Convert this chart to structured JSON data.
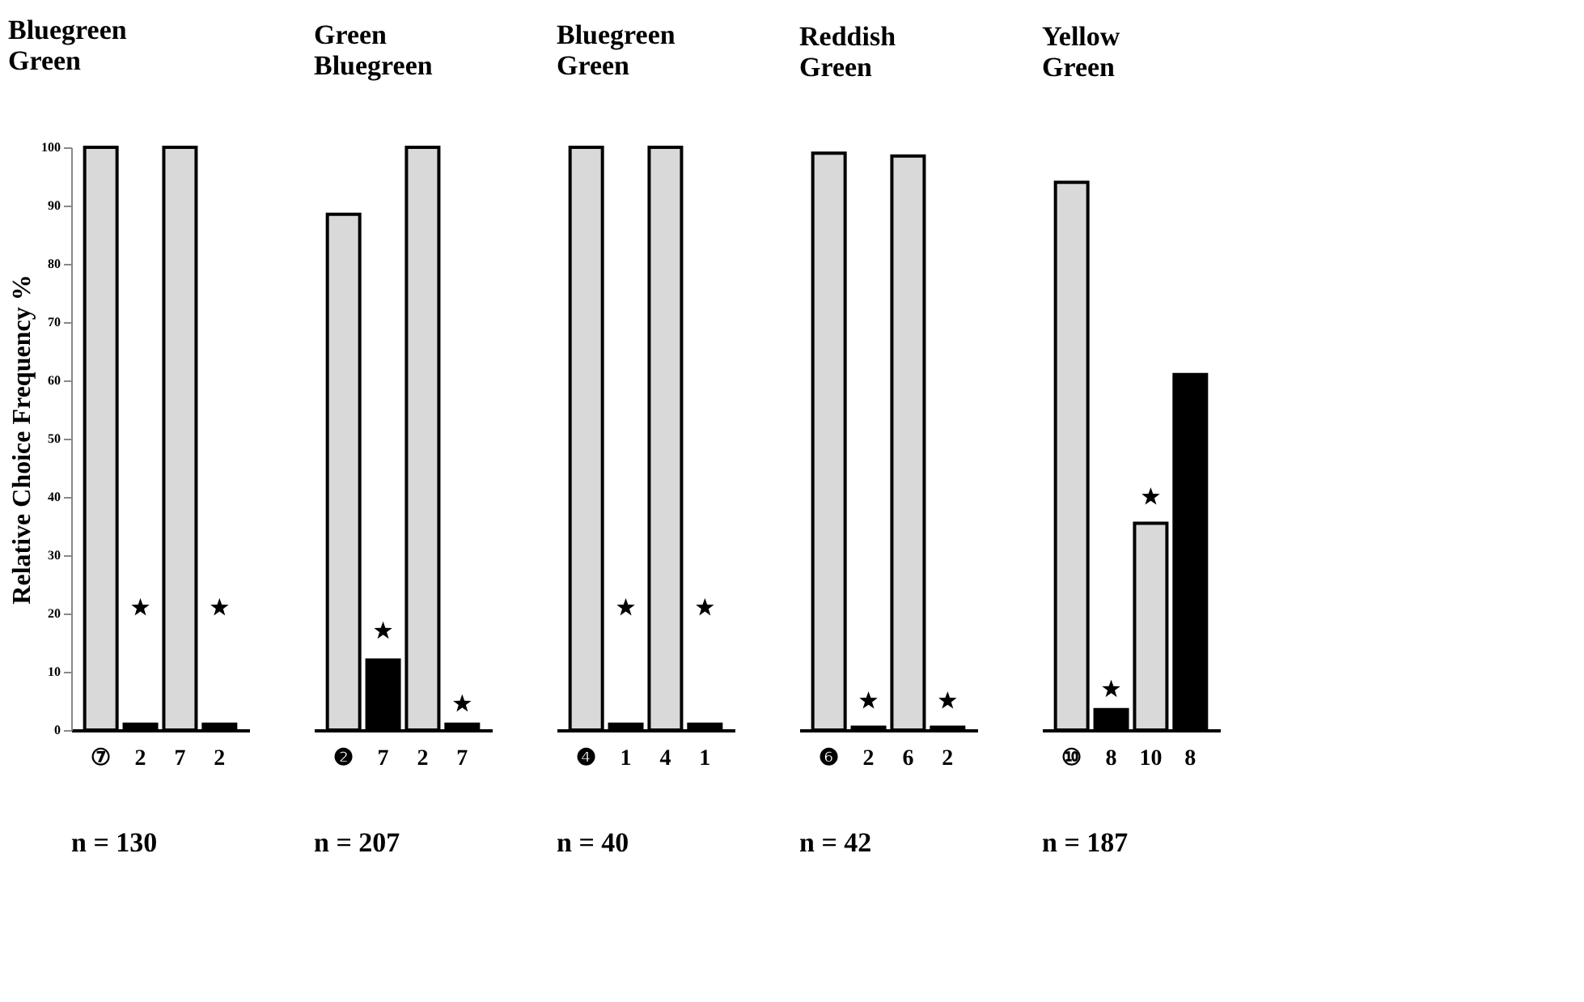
{
  "chart_data": [
    {
      "type": "bar",
      "title": "Bluegreen\nGreen",
      "ylabel": "Relative Choice Frequency %",
      "categories": [
        "⑦",
        "2",
        "7",
        "2"
      ],
      "ylim": [
        0,
        100
      ],
      "yticks": [
        0,
        10,
        20,
        30,
        40,
        50,
        60,
        70,
        80,
        90,
        100
      ],
      "grid": false,
      "annotations": [
        "n = 130"
      ],
      "series": [
        {
          "values": [
            100,
            1,
            100,
            1
          ],
          "colors": [
            "#d9d9d9",
            "#000000",
            "#d9d9d9",
            "#000000"
          ]
        },
        {
          "type": "scatter",
          "marker": "star",
          "values": [
            null,
            21,
            null,
            21
          ],
          "color": "#000000"
        }
      ]
    },
    {
      "type": "bar",
      "title": "Green\nBluegreen",
      "categories": [
        "❷",
        "7",
        "2",
        "7"
      ],
      "ylim": [
        0,
        100
      ],
      "grid": false,
      "tick_labels": "x",
      "annotations": [
        "n = 207"
      ],
      "series": [
        {
          "values": [
            88.5,
            12,
            100,
            1
          ],
          "colors": [
            "#d9d9d9",
            "#000000",
            "#d9d9d9",
            "#000000"
          ]
        },
        {
          "type": "scatter",
          "marker": "star",
          "values": [
            null,
            17,
            null,
            4.5
          ],
          "color": "#000000"
        }
      ]
    },
    {
      "type": "bar",
      "title": "Bluegreen\nGreen",
      "categories": [
        "❹",
        "1",
        "4",
        "1"
      ],
      "ylim": [
        0,
        100
      ],
      "grid": false,
      "tick_labels": "x",
      "annotations": [
        "n = 40"
      ],
      "series": [
        {
          "values": [
            100,
            1,
            100,
            1
          ],
          "colors": [
            "#d9d9d9",
            "#000000",
            "#d9d9d9",
            "#000000"
          ]
        },
        {
          "type": "scatter",
          "marker": "star",
          "values": [
            null,
            21,
            null,
            21
          ],
          "color": "#000000"
        }
      ]
    },
    {
      "type": "bar",
      "title": "Reddish\nGreen",
      "categories": [
        "❻",
        "2",
        "6",
        "2"
      ],
      "ylim": [
        0,
        100
      ],
      "grid": false,
      "tick_labels": "x",
      "annotations": [
        "n = 42"
      ],
      "series": [
        {
          "values": [
            99,
            0.5,
            98.5,
            0.5
          ],
          "colors": [
            "#d9d9d9",
            "#000000",
            "#d9d9d9",
            "#000000"
          ]
        },
        {
          "type": "scatter",
          "marker": "star",
          "values": [
            null,
            5,
            null,
            5
          ],
          "color": "#000000"
        }
      ]
    },
    {
      "type": "bar",
      "title": "Yellow\nGreen",
      "categories": [
        "⑩",
        "8",
        "10",
        "8"
      ],
      "ylim": [
        0,
        100
      ],
      "grid": false,
      "tick_labels": "x",
      "annotations": [
        "n = 187"
      ],
      "series": [
        {
          "values": [
            94,
            3.5,
            35.5,
            61
          ],
          "colors": [
            "#d9d9d9",
            "#000000",
            "#d9d9d9",
            "#000000"
          ]
        },
        {
          "type": "scatter",
          "marker": "star",
          "values": [
            null,
            7,
            40,
            null
          ],
          "color": "#000000"
        }
      ]
    }
  ]
}
